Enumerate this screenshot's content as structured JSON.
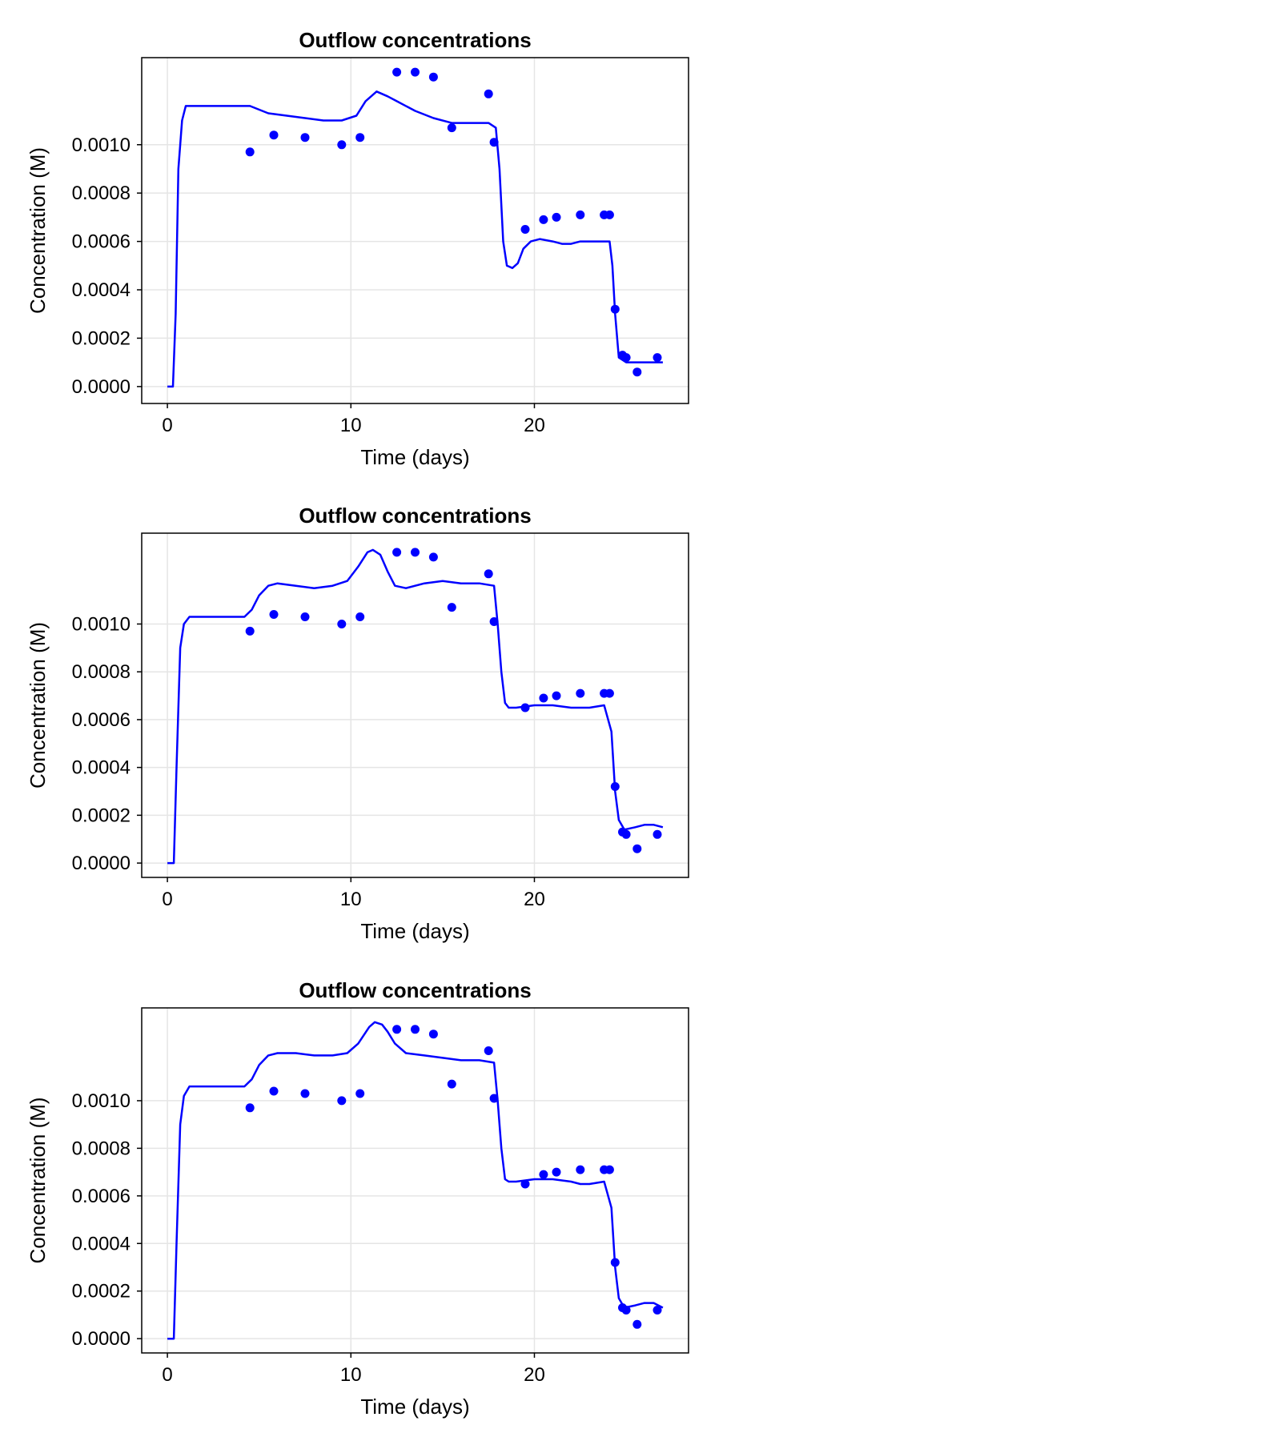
{
  "chart_data": [
    {
      "type": "line",
      "title": "Outflow concentrations",
      "xlabel": "Time (days)",
      "ylabel": "Concentration (M)",
      "xlim": [
        -1.4,
        28.4
      ],
      "ylim": [
        -7e-05,
        0.00136
      ],
      "xticks": [
        0,
        10,
        20
      ],
      "xtick_labels": [
        "0",
        "10",
        "20"
      ],
      "yticks": [
        0,
        0.0002,
        0.0004,
        0.0006,
        0.0008,
        0.001
      ],
      "ytick_labels": [
        "0.0000",
        "0.0002",
        "0.0004",
        "0.0006",
        "0.0008",
        "0.0010"
      ],
      "grid": true,
      "series": [
        {
          "kind": "line",
          "color": "#0000ff",
          "x": [
            0,
            0.3,
            0.45,
            0.6,
            0.8,
            1,
            3,
            4.5,
            5.5,
            6.5,
            7.5,
            8.5,
            9.5,
            10.3,
            10.8,
            11.4,
            12.0,
            12.5,
            13.5,
            14.5,
            15.5,
            16.5,
            17.5,
            17.9,
            18.1,
            18.3,
            18.5,
            18.8,
            19.1,
            19.4,
            19.8,
            20.3,
            21,
            21.5,
            22,
            22.5,
            23,
            23.8,
            24.1,
            24.25,
            24.4,
            24.6,
            25.0,
            25.5,
            26.0,
            27.0
          ],
          "y": [
            0,
            0,
            0.0003,
            0.0009,
            0.0011,
            0.00116,
            0.00116,
            0.00116,
            0.00113,
            0.00112,
            0.00111,
            0.0011,
            0.0011,
            0.00112,
            0.00118,
            0.00122,
            0.0012,
            0.00118,
            0.00114,
            0.00111,
            0.00109,
            0.00109,
            0.00109,
            0.00107,
            0.0009,
            0.0006,
            0.0005,
            0.00049,
            0.00051,
            0.00057,
            0.0006,
            0.00061,
            0.0006,
            0.00059,
            0.00059,
            0.0006,
            0.0006,
            0.0006,
            0.0006,
            0.0005,
            0.0003,
            0.00012,
            0.0001,
            0.0001,
            0.0001,
            0.0001
          ]
        },
        {
          "kind": "scatter",
          "color": "#0000ff",
          "x": [
            4.5,
            5.8,
            7.5,
            9.5,
            10.5,
            12.5,
            13.5,
            14.5,
            15.5,
            17.5,
            17.8,
            19.5,
            20.5,
            21.2,
            22.5,
            23.8,
            24.1,
            24.4,
            24.8,
            25.0,
            25.6,
            26.7
          ],
          "y": [
            0.00097,
            0.00104,
            0.00103,
            0.001,
            0.00103,
            0.0013,
            0.0013,
            0.00128,
            0.00107,
            0.00121,
            0.00101,
            0.00065,
            0.00069,
            0.0007,
            0.00071,
            0.00071,
            0.00071,
            0.00032,
            0.00013,
            0.00012,
            6e-05,
            0.00012
          ]
        }
      ]
    },
    {
      "type": "line",
      "title": "Outflow concentrations",
      "xlabel": "Time (days)",
      "ylabel": "Concentration (M)",
      "xlim": [
        -1.4,
        28.4
      ],
      "ylim": [
        -6e-05,
        0.00138
      ],
      "xticks": [
        0,
        10,
        20
      ],
      "xtick_labels": [
        "0",
        "10",
        "20"
      ],
      "yticks": [
        0,
        0.0002,
        0.0004,
        0.0006,
        0.0008,
        0.001
      ],
      "ytick_labels": [
        "0.0000",
        "0.0002",
        "0.0004",
        "0.0006",
        "0.0008",
        "0.0010"
      ],
      "grid": true,
      "series": [
        {
          "kind": "line",
          "color": "#0000ff",
          "x": [
            0,
            0.35,
            0.5,
            0.7,
            0.9,
            1.2,
            3,
            4.2,
            4.6,
            5.0,
            5.5,
            6.0,
            7.0,
            8.0,
            9.0,
            9.8,
            10.4,
            10.9,
            11.2,
            11.6,
            12.0,
            12.4,
            13.0,
            14.0,
            15.0,
            16.0,
            17.0,
            17.8,
            18.0,
            18.2,
            18.4,
            18.6,
            19.0,
            20,
            21,
            22,
            23,
            23.8,
            24.2,
            24.4,
            24.6,
            24.9,
            25.5,
            26.0,
            26.5,
            27.0
          ],
          "y": [
            0,
            0,
            0.0004,
            0.0009,
            0.001,
            0.00103,
            0.00103,
            0.00103,
            0.00106,
            0.00112,
            0.00116,
            0.00117,
            0.00116,
            0.00115,
            0.00116,
            0.00118,
            0.00124,
            0.0013,
            0.00131,
            0.00129,
            0.00122,
            0.00116,
            0.00115,
            0.00117,
            0.00118,
            0.00117,
            0.00117,
            0.00116,
            0.001,
            0.0008,
            0.00067,
            0.00065,
            0.00065,
            0.00066,
            0.00066,
            0.00065,
            0.00065,
            0.00066,
            0.00055,
            0.0003,
            0.00018,
            0.00014,
            0.00015,
            0.00016,
            0.00016,
            0.00015
          ]
        },
        {
          "kind": "scatter",
          "color": "#0000ff",
          "x": [
            4.5,
            5.8,
            7.5,
            9.5,
            10.5,
            12.5,
            13.5,
            14.5,
            15.5,
            17.5,
            17.8,
            19.5,
            20.5,
            21.2,
            22.5,
            23.8,
            24.1,
            24.4,
            24.8,
            25.0,
            25.6,
            26.7
          ],
          "y": [
            0.00097,
            0.00104,
            0.00103,
            0.001,
            0.00103,
            0.0013,
            0.0013,
            0.00128,
            0.00107,
            0.00121,
            0.00101,
            0.00065,
            0.00069,
            0.0007,
            0.00071,
            0.00071,
            0.00071,
            0.00032,
            0.00013,
            0.00012,
            6e-05,
            0.00012
          ]
        }
      ]
    },
    {
      "type": "line",
      "title": "Outflow concentrations",
      "xlabel": "Time (days)",
      "ylabel": "Concentration (M)",
      "xlim": [
        -1.4,
        28.4
      ],
      "ylim": [
        -6e-05,
        0.00139
      ],
      "xticks": [
        0,
        10,
        20
      ],
      "xtick_labels": [
        "0",
        "10",
        "20"
      ],
      "yticks": [
        0,
        0.0002,
        0.0004,
        0.0006,
        0.0008,
        0.001
      ],
      "ytick_labels": [
        "0.0000",
        "0.0002",
        "0.0004",
        "0.0006",
        "0.0008",
        "0.0010"
      ],
      "grid": true,
      "series": [
        {
          "kind": "line",
          "color": "#0000ff",
          "x": [
            0,
            0.35,
            0.5,
            0.7,
            0.9,
            1.2,
            3,
            4.2,
            4.6,
            5.0,
            5.5,
            6.0,
            7.0,
            8.0,
            9.0,
            9.8,
            10.4,
            11.0,
            11.3,
            11.7,
            12.0,
            12.4,
            13.0,
            14.0,
            15.0,
            16.0,
            17.0,
            17.8,
            18.0,
            18.2,
            18.4,
            18.6,
            19.0,
            20,
            21,
            22,
            22.5,
            23,
            23.8,
            24.2,
            24.4,
            24.6,
            24.9,
            25.5,
            26.0,
            26.5,
            27.0
          ],
          "y": [
            0,
            0,
            0.0004,
            0.0009,
            0.00102,
            0.00106,
            0.00106,
            0.00106,
            0.00109,
            0.00115,
            0.00119,
            0.0012,
            0.0012,
            0.00119,
            0.00119,
            0.0012,
            0.00124,
            0.00131,
            0.00133,
            0.00132,
            0.00129,
            0.00124,
            0.0012,
            0.00119,
            0.00118,
            0.00117,
            0.00117,
            0.00116,
            0.001,
            0.0008,
            0.00067,
            0.00066,
            0.00066,
            0.00067,
            0.00067,
            0.00066,
            0.00065,
            0.00065,
            0.00066,
            0.00055,
            0.0003,
            0.00017,
            0.00013,
            0.00014,
            0.00015,
            0.00015,
            0.00013
          ]
        },
        {
          "kind": "scatter",
          "color": "#0000ff",
          "x": [
            4.5,
            5.8,
            7.5,
            9.5,
            10.5,
            12.5,
            13.5,
            14.5,
            15.5,
            17.5,
            17.8,
            19.5,
            20.5,
            21.2,
            22.5,
            23.8,
            24.1,
            24.4,
            24.8,
            25.0,
            25.6,
            26.7
          ],
          "y": [
            0.00097,
            0.00104,
            0.00103,
            0.001,
            0.00103,
            0.0013,
            0.0013,
            0.00128,
            0.00107,
            0.00121,
            0.00101,
            0.00065,
            0.00069,
            0.0007,
            0.00071,
            0.00071,
            0.00071,
            0.00032,
            0.00013,
            0.00012,
            6e-05,
            0.00012
          ]
        }
      ]
    }
  ]
}
